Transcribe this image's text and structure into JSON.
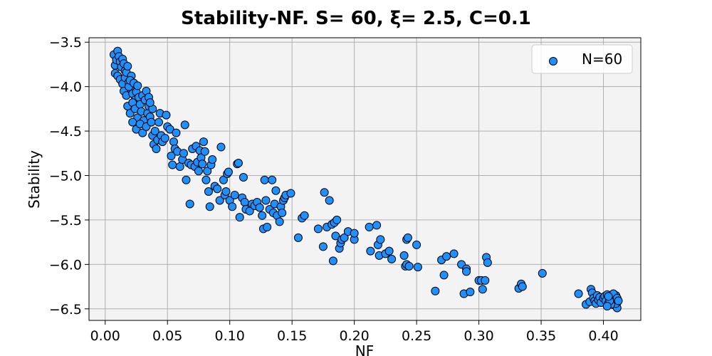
{
  "chart_data": {
    "type": "scatter",
    "title": "Stability-NF. S= 60, ξ= 2.5, C=0.1",
    "xlabel": "NF",
    "ylabel": "Stability",
    "xlim": [
      -0.013,
      0.43
    ],
    "ylim": [
      -6.63,
      -3.45
    ],
    "xticks": [
      0.0,
      0.05,
      0.1,
      0.15,
      0.2,
      0.25,
      0.3,
      0.35,
      0.4
    ],
    "xtick_labels": [
      "0.00",
      "0.05",
      "0.10",
      "0.15",
      "0.20",
      "0.25",
      "0.30",
      "0.35",
      "0.40"
    ],
    "yticks": [
      -3.5,
      -4.0,
      -4.5,
      -5.0,
      -5.5,
      -6.0,
      -6.5
    ],
    "ytick_labels": [
      "−3.5",
      "−4.0",
      "−4.5",
      "−5.0",
      "−5.5",
      "−6.0",
      "−6.5"
    ],
    "grid": true,
    "legend_position": "top-right",
    "series": [
      {
        "name": "N=60",
        "color": "#1e90ff",
        "edge_color": "#000000",
        "points": [
          [
            0.007,
            -3.64
          ],
          [
            0.008,
            -3.76
          ],
          [
            0.009,
            -3.7
          ],
          [
            0.01,
            -3.6
          ],
          [
            0.011,
            -3.66
          ],
          [
            0.012,
            -3.72
          ],
          [
            0.013,
            -3.78
          ],
          [
            0.014,
            -3.69
          ],
          [
            0.015,
            -3.74
          ],
          [
            0.016,
            -3.82
          ],
          [
            0.008,
            -3.85
          ],
          [
            0.01,
            -3.88
          ],
          [
            0.012,
            -3.92
          ],
          [
            0.014,
            -3.97
          ],
          [
            0.016,
            -3.9
          ],
          [
            0.017,
            -3.84
          ],
          [
            0.018,
            -3.77
          ],
          [
            0.019,
            -3.95
          ],
          [
            0.02,
            -4.02
          ],
          [
            0.021,
            -3.88
          ],
          [
            0.015,
            -4.05
          ],
          [
            0.017,
            -4.1
          ],
          [
            0.019,
            -4.0
          ],
          [
            0.02,
            -3.93
          ],
          [
            0.022,
            -4.08
          ],
          [
            0.023,
            -3.96
          ],
          [
            0.024,
            -4.15
          ],
          [
            0.025,
            -4.06
          ],
          [
            0.026,
            -3.99
          ],
          [
            0.027,
            -4.12
          ],
          [
            0.018,
            -4.22
          ],
          [
            0.02,
            -4.3
          ],
          [
            0.022,
            -4.18
          ],
          [
            0.024,
            -4.25
          ],
          [
            0.026,
            -4.35
          ],
          [
            0.028,
            -4.2
          ],
          [
            0.029,
            -4.28
          ],
          [
            0.03,
            -4.1
          ],
          [
            0.031,
            -4.38
          ],
          [
            0.032,
            -4.15
          ],
          [
            0.022,
            -4.4
          ],
          [
            0.025,
            -4.48
          ],
          [
            0.028,
            -4.42
          ],
          [
            0.03,
            -4.52
          ],
          [
            0.033,
            -4.45
          ],
          [
            0.034,
            -4.3
          ],
          [
            0.035,
            -4.22
          ],
          [
            0.036,
            -4.34
          ],
          [
            0.037,
            -4.4
          ],
          [
            0.038,
            -4.25
          ],
          [
            0.033,
            -4.05
          ],
          [
            0.035,
            -4.12
          ],
          [
            0.036,
            -4.18
          ],
          [
            0.038,
            -4.55
          ],
          [
            0.039,
            -4.65
          ],
          [
            0.04,
            -4.5
          ],
          [
            0.041,
            -4.7
          ],
          [
            0.042,
            -4.6
          ],
          [
            0.043,
            -4.4
          ],
          [
            0.044,
            -4.3
          ],
          [
            0.045,
            -4.55
          ],
          [
            0.046,
            -4.62
          ],
          [
            0.048,
            -4.58
          ],
          [
            0.049,
            -4.32
          ],
          [
            0.05,
            -4.45
          ],
          [
            0.052,
            -4.48
          ],
          [
            0.053,
            -4.78
          ],
          [
            0.054,
            -4.88
          ],
          [
            0.055,
            -4.62
          ],
          [
            0.056,
            -4.7
          ],
          [
            0.057,
            -4.52
          ],
          [
            0.058,
            -4.73
          ],
          [
            0.06,
            -4.9
          ],
          [
            0.062,
            -4.82
          ],
          [
            0.063,
            -4.75
          ],
          [
            0.064,
            -4.43
          ],
          [
            0.065,
            -5.05
          ],
          [
            0.067,
            -4.86
          ],
          [
            0.068,
            -5.32
          ],
          [
            0.069,
            -4.88
          ],
          [
            0.07,
            -4.7
          ],
          [
            0.072,
            -4.9
          ],
          [
            0.073,
            -4.67
          ],
          [
            0.074,
            -4.85
          ],
          [
            0.075,
            -4.95
          ],
          [
            0.076,
            -4.72
          ],
          [
            0.077,
            -4.8
          ],
          [
            0.078,
            -4.87
          ],
          [
            0.079,
            -4.62
          ],
          [
            0.08,
            -4.73
          ],
          [
            0.081,
            -5.05
          ],
          [
            0.082,
            -4.95
          ],
          [
            0.083,
            -5.18
          ],
          [
            0.084,
            -5.35
          ],
          [
            0.085,
            -4.88
          ],
          [
            0.086,
            -4.82
          ],
          [
            0.088,
            -5.12
          ],
          [
            0.09,
            -5.15
          ],
          [
            0.092,
            -5.28
          ],
          [
            0.093,
            -4.68
          ],
          [
            0.095,
            -5.05
          ],
          [
            0.096,
            -5.22
          ],
          [
            0.097,
            -5.18
          ],
          [
            0.098,
            -4.98
          ],
          [
            0.099,
            -4.96
          ],
          [
            0.1,
            -5.28
          ],
          [
            0.102,
            -5.35
          ],
          [
            0.104,
            -5.22
          ],
          [
            0.106,
            -4.87
          ],
          [
            0.107,
            -4.86
          ],
          [
            0.108,
            -5.47
          ],
          [
            0.11,
            -5.25
          ],
          [
            0.111,
            -5.02
          ],
          [
            0.112,
            -5.3
          ],
          [
            0.113,
            -5.38
          ],
          [
            0.116,
            -5.4
          ],
          [
            0.118,
            -5.32
          ],
          [
            0.12,
            -5.34
          ],
          [
            0.122,
            -5.3
          ],
          [
            0.124,
            -5.36
          ],
          [
            0.126,
            -5.45
          ],
          [
            0.127,
            -5.6
          ],
          [
            0.128,
            -5.05
          ],
          [
            0.129,
            -5.28
          ],
          [
            0.13,
            -5.58
          ],
          [
            0.132,
            -5.38
          ],
          [
            0.134,
            -5.05
          ],
          [
            0.135,
            -5.42
          ],
          [
            0.136,
            -5.32
          ],
          [
            0.137,
            -5.17
          ],
          [
            0.138,
            -5.45
          ],
          [
            0.14,
            -5.52
          ],
          [
            0.141,
            -5.35
          ],
          [
            0.142,
            -5.42
          ],
          [
            0.143,
            -5.28
          ],
          [
            0.144,
            -5.25
          ],
          [
            0.145,
            -5.22
          ],
          [
            0.149,
            -5.2
          ],
          [
            0.155,
            -5.7
          ],
          [
            0.158,
            -5.48
          ],
          [
            0.16,
            -5.45
          ],
          [
            0.171,
            -5.6
          ],
          [
            0.175,
            -5.8
          ],
          [
            0.176,
            -5.19
          ],
          [
            0.178,
            -5.58
          ],
          [
            0.18,
            -5.28
          ],
          [
            0.182,
            -5.55
          ],
          [
            0.183,
            -5.96
          ],
          [
            0.184,
            -5.53
          ],
          [
            0.185,
            -5.68
          ],
          [
            0.186,
            -5.5
          ],
          [
            0.188,
            -5.82
          ],
          [
            0.189,
            -5.76
          ],
          [
            0.19,
            -5.72
          ],
          [
            0.192,
            -5.7
          ],
          [
            0.195,
            -5.63
          ],
          [
            0.2,
            -5.72
          ],
          [
            0.2,
            -5.65
          ],
          [
            0.212,
            -5.58
          ],
          [
            0.213,
            -5.85
          ],
          [
            0.218,
            -5.56
          ],
          [
            0.219,
            -5.78
          ],
          [
            0.22,
            -5.9
          ],
          [
            0.221,
            -5.72
          ],
          [
            0.225,
            -5.88
          ],
          [
            0.228,
            -5.85
          ],
          [
            0.23,
            -5.94
          ],
          [
            0.24,
            -5.9
          ],
          [
            0.241,
            -6.02
          ],
          [
            0.242,
            -6.0
          ],
          [
            0.242,
            -5.72
          ],
          [
            0.243,
            -5.7
          ],
          [
            0.244,
            -6.02
          ],
          [
            0.25,
            -5.78
          ],
          [
            0.251,
            -6.03
          ],
          [
            0.265,
            -6.3
          ],
          [
            0.27,
            -5.95
          ],
          [
            0.272,
            -6.12
          ],
          [
            0.274,
            -5.91
          ],
          [
            0.28,
            -5.88
          ],
          [
            0.286,
            -6.0
          ],
          [
            0.288,
            -6.33
          ],
          [
            0.29,
            -6.05
          ],
          [
            0.29,
            -6.08
          ],
          [
            0.293,
            -6.31
          ],
          [
            0.3,
            -6.18
          ],
          [
            0.302,
            -6.18
          ],
          [
            0.303,
            -6.28
          ],
          [
            0.305,
            -6.18
          ],
          [
            0.306,
            -5.92
          ],
          [
            0.307,
            -5.98
          ],
          [
            0.332,
            -6.27
          ],
          [
            0.334,
            -6.22
          ],
          [
            0.335,
            -6.25
          ],
          [
            0.351,
            -6.1
          ],
          [
            0.38,
            -6.33
          ],
          [
            0.386,
            -6.45
          ],
          [
            0.389,
            -6.42
          ],
          [
            0.39,
            -6.28
          ],
          [
            0.391,
            -6.32
          ],
          [
            0.392,
            -6.38
          ],
          [
            0.393,
            -6.41
          ],
          [
            0.394,
            -6.44
          ],
          [
            0.395,
            -6.35
          ],
          [
            0.396,
            -6.4
          ],
          [
            0.397,
            -6.37
          ],
          [
            0.398,
            -6.43
          ],
          [
            0.4,
            -6.38
          ],
          [
            0.401,
            -6.36
          ],
          [
            0.402,
            -6.41
          ],
          [
            0.403,
            -6.34
          ],
          [
            0.404,
            -6.44
          ],
          [
            0.405,
            -6.39
          ],
          [
            0.406,
            -6.36
          ],
          [
            0.407,
            -6.42
          ],
          [
            0.408,
            -6.38
          ],
          [
            0.409,
            -6.46
          ],
          [
            0.41,
            -6.4
          ],
          [
            0.41,
            -6.35
          ],
          [
            0.411,
            -6.43
          ],
          [
            0.411,
            -6.49
          ],
          [
            0.41,
            -6.44
          ],
          [
            0.409,
            -6.37
          ],
          [
            0.408,
            -6.33
          ],
          [
            0.406,
            -6.45
          ],
          [
            0.411,
            -6.38
          ],
          [
            0.405,
            -6.41
          ],
          [
            0.403,
            -6.47
          ],
          [
            0.412,
            -6.41
          ],
          [
            0.404,
            -6.36
          ]
        ]
      }
    ]
  }
}
